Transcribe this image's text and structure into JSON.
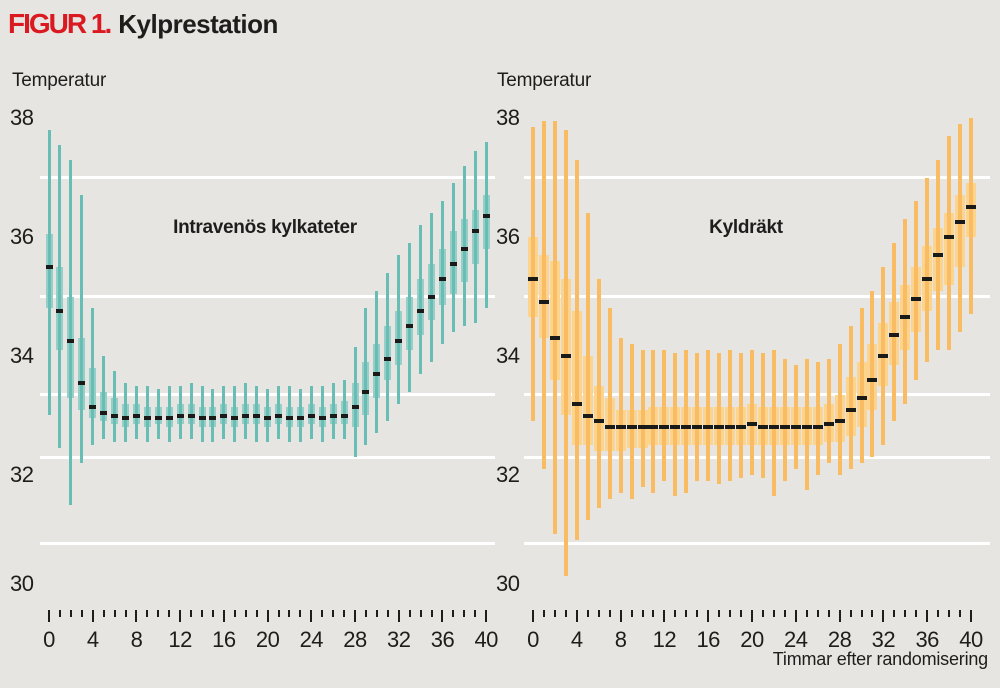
{
  "figure": {
    "tag": "FIGUR 1.",
    "title": "Kylprestation"
  },
  "axes": {
    "y_label": "Temperatur",
    "x_label": "Timmar efter randomisering",
    "y_min": 30,
    "y_max": 38,
    "y_ticks": [
      38,
      36,
      34,
      32,
      30
    ],
    "gridlines": [
      37,
      35,
      33.35,
      32.3,
      30.85
    ],
    "x_ticks_every_hour": true,
    "x_major_every": 4,
    "x_tick_labels": [
      "0",
      "4",
      "8",
      "12",
      "16",
      "20",
      "24",
      "28",
      "32",
      "36",
      "40"
    ]
  },
  "colors": {
    "background": "#e7e5e2",
    "gridline": "#ffffff",
    "text": "#1d1d1b",
    "accent_red": "#da1a20",
    "median": "#1a1a18",
    "teal_box": "#95cfc8",
    "teal_whisker": "#68beb5",
    "orange_box": "#fcd48e",
    "orange_whisker": "#f9bc62"
  },
  "chart_data": [
    {
      "type": "boxplot",
      "title": "Intravenös kylkateter",
      "x_hours": [
        0,
        1,
        2,
        3,
        4,
        5,
        6,
        7,
        8,
        9,
        10,
        11,
        12,
        13,
        14,
        15,
        16,
        17,
        18,
        19,
        20,
        21,
        22,
        23,
        24,
        25,
        26,
        27,
        28,
        29,
        30,
        31,
        32,
        33,
        34,
        35,
        36,
        37,
        38,
        39,
        40
      ],
      "value_format": "[whisker_low, q1, median, q3, whisker_high] (°C)",
      "box_color": "#95cfc8",
      "whisker_color": "#68beb5",
      "series": [
        [
          33.0,
          34.8,
          35.5,
          36.05,
          37.8
        ],
        [
          32.45,
          34.1,
          34.75,
          35.5,
          37.55
        ],
        [
          31.5,
          33.3,
          34.25,
          35.0,
          37.3
        ],
        [
          32.2,
          33.1,
          33.55,
          34.3,
          36.7
        ],
        [
          32.5,
          32.95,
          33.15,
          33.8,
          34.8
        ],
        [
          32.6,
          32.9,
          33.05,
          33.4,
          34.0
        ],
        [
          32.55,
          32.85,
          33.0,
          33.3,
          33.75
        ],
        [
          32.55,
          32.8,
          32.95,
          33.2,
          33.55
        ],
        [
          32.6,
          32.85,
          33.0,
          33.2,
          33.5
        ],
        [
          32.55,
          32.8,
          32.95,
          33.15,
          33.5
        ],
        [
          32.6,
          32.85,
          32.95,
          33.15,
          33.45
        ],
        [
          32.55,
          32.8,
          32.95,
          33.15,
          33.5
        ],
        [
          32.6,
          32.85,
          33.0,
          33.2,
          33.5
        ],
        [
          32.6,
          32.85,
          33.0,
          33.2,
          33.55
        ],
        [
          32.55,
          32.8,
          32.95,
          33.15,
          33.5
        ],
        [
          32.55,
          32.8,
          32.95,
          33.15,
          33.45
        ],
        [
          32.6,
          32.85,
          33.0,
          33.2,
          33.5
        ],
        [
          32.55,
          32.8,
          32.95,
          33.15,
          33.5
        ],
        [
          32.6,
          32.85,
          33.0,
          33.2,
          33.55
        ],
        [
          32.55,
          32.85,
          33.0,
          33.2,
          33.5
        ],
        [
          32.55,
          32.8,
          32.95,
          33.15,
          33.45
        ],
        [
          32.6,
          32.85,
          33.0,
          33.2,
          33.5
        ],
        [
          32.55,
          32.8,
          32.95,
          33.15,
          33.5
        ],
        [
          32.55,
          32.8,
          32.95,
          33.15,
          33.45
        ],
        [
          32.6,
          32.85,
          33.0,
          33.2,
          33.5
        ],
        [
          32.55,
          32.8,
          32.95,
          33.15,
          33.5
        ],
        [
          32.6,
          32.85,
          33.0,
          33.2,
          33.55
        ],
        [
          32.6,
          32.85,
          33.0,
          33.25,
          33.6
        ],
        [
          32.3,
          32.8,
          33.15,
          33.55,
          34.15
        ],
        [
          32.5,
          33.0,
          33.4,
          33.9,
          34.8
        ],
        [
          32.7,
          33.3,
          33.7,
          34.2,
          35.1
        ],
        [
          32.9,
          33.6,
          33.95,
          34.5,
          35.4
        ],
        [
          33.2,
          33.85,
          34.25,
          34.75,
          35.7
        ],
        [
          33.4,
          34.1,
          34.5,
          35.0,
          35.9
        ],
        [
          33.7,
          34.35,
          34.75,
          35.3,
          36.2
        ],
        [
          33.9,
          34.6,
          35.0,
          35.55,
          36.4
        ],
        [
          34.2,
          34.85,
          35.3,
          35.8,
          36.6
        ],
        [
          34.4,
          35.05,
          35.55,
          36.1,
          36.9
        ],
        [
          34.5,
          35.25,
          35.8,
          36.3,
          37.2
        ],
        [
          34.55,
          35.55,
          36.1,
          36.45,
          37.45
        ],
        [
          34.8,
          35.8,
          36.35,
          36.7,
          37.6
        ]
      ]
    },
    {
      "type": "boxplot",
      "title": "Kyldräkt",
      "x_hours": [
        0,
        1,
        2,
        3,
        4,
        5,
        6,
        7,
        8,
        9,
        10,
        11,
        12,
        13,
        14,
        15,
        16,
        17,
        18,
        19,
        20,
        21,
        22,
        23,
        24,
        25,
        26,
        27,
        28,
        29,
        30,
        31,
        32,
        33,
        34,
        35,
        36,
        37,
        38,
        39,
        40
      ],
      "value_format": "[whisker_low, q1, median, q3, whisker_high] (°C)",
      "box_color": "#fcd48e",
      "whisker_color": "#f9bc62",
      "series": [
        [
          32.9,
          34.65,
          35.3,
          36.0,
          37.85
        ],
        [
          32.1,
          34.3,
          34.9,
          35.7,
          37.95
        ],
        [
          31.0,
          33.6,
          34.3,
          35.6,
          37.95
        ],
        [
          30.3,
          33.0,
          34.0,
          35.3,
          37.8
        ],
        [
          30.9,
          32.5,
          33.2,
          34.75,
          37.3
        ],
        [
          31.25,
          32.5,
          33.0,
          34.0,
          36.4
        ],
        [
          31.45,
          32.4,
          32.9,
          33.5,
          35.3
        ],
        [
          31.6,
          32.4,
          32.8,
          33.3,
          34.8
        ],
        [
          31.7,
          32.4,
          32.8,
          33.1,
          34.3
        ],
        [
          31.6,
          32.45,
          32.8,
          33.1,
          34.2
        ],
        [
          31.8,
          32.45,
          32.8,
          33.1,
          34.1
        ],
        [
          31.7,
          32.5,
          32.8,
          33.15,
          34.1
        ],
        [
          31.9,
          32.5,
          32.8,
          33.15,
          34.1
        ],
        [
          31.65,
          32.5,
          32.8,
          33.15,
          34.05
        ],
        [
          31.7,
          32.5,
          32.8,
          33.15,
          34.1
        ],
        [
          31.9,
          32.5,
          32.8,
          33.15,
          34.05
        ],
        [
          31.9,
          32.5,
          32.8,
          33.15,
          34.1
        ],
        [
          31.85,
          32.5,
          32.8,
          33.15,
          34.05
        ],
        [
          31.9,
          32.5,
          32.8,
          33.15,
          34.1
        ],
        [
          31.95,
          32.5,
          32.8,
          33.15,
          34.05
        ],
        [
          32.0,
          32.5,
          32.85,
          33.2,
          34.1
        ],
        [
          31.95,
          32.5,
          32.8,
          33.15,
          34.05
        ],
        [
          31.65,
          32.5,
          32.8,
          33.15,
          34.1
        ],
        [
          31.9,
          32.5,
          32.8,
          33.15,
          33.95
        ],
        [
          32.1,
          32.5,
          32.8,
          33.15,
          33.85
        ],
        [
          31.75,
          32.5,
          32.8,
          33.15,
          33.95
        ],
        [
          32.0,
          32.5,
          32.8,
          33.15,
          33.9
        ],
        [
          32.2,
          32.55,
          32.85,
          33.2,
          33.95
        ],
        [
          32.0,
          32.55,
          32.9,
          33.35,
          34.2
        ],
        [
          32.1,
          32.65,
          33.1,
          33.65,
          34.5
        ],
        [
          32.2,
          32.8,
          33.3,
          33.9,
          34.8
        ],
        [
          32.3,
          33.1,
          33.6,
          34.2,
          35.1
        ],
        [
          32.5,
          33.5,
          34.0,
          34.55,
          35.5
        ],
        [
          32.9,
          33.85,
          34.35,
          34.9,
          35.9
        ],
        [
          33.2,
          34.1,
          34.65,
          35.2,
          36.3
        ],
        [
          33.6,
          34.4,
          34.95,
          35.5,
          36.6
        ],
        [
          33.9,
          34.75,
          35.3,
          35.85,
          37.0
        ],
        [
          34.1,
          35.1,
          35.7,
          36.15,
          37.3
        ],
        [
          34.1,
          35.2,
          36.0,
          36.4,
          37.7
        ],
        [
          34.4,
          35.5,
          36.25,
          36.7,
          37.9
        ],
        [
          34.7,
          36.0,
          36.5,
          36.9,
          38.0
        ]
      ]
    }
  ]
}
